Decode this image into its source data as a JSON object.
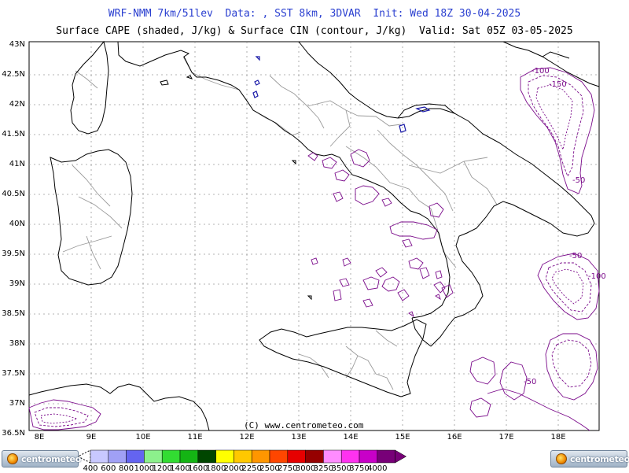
{
  "header": {
    "title_line1": "WRF-NMM 7km/51lev  Data: , SST 8km, 3DVAR  Init: Wed 18Z 30-04-2025",
    "title_line2": "Surface CAPE (shaded, J/kg) & Surface CIN (contour, J/kg)  Valid: Sat 05Z 03-05-2025"
  },
  "map": {
    "latitude_labels": [
      "43N",
      "42.5N",
      "42N",
      "41.5N",
      "41N",
      "40.5N",
      "40N",
      "39.5N",
      "39N",
      "38.5N",
      "38N",
      "37.5N",
      "37N",
      "36.5N"
    ],
    "longitude_labels": [
      "8E",
      "9E",
      "10E",
      "11E",
      "12E",
      "13E",
      "14E",
      "15E",
      "16E",
      "17E",
      "18E"
    ],
    "cin_contour_labels": [
      "-100",
      "-150",
      "-50",
      "-100",
      "-50",
      "-50"
    ],
    "copyright": "(C) www.centrometeo.com",
    "colors": {
      "coastline": "#000000",
      "borders": "#9a9a9a",
      "grid": "#9a9a9a",
      "cin_contour": "#7a0a8a",
      "cape_small": "#1a1aa8"
    }
  },
  "colorbar": {
    "ticks": [
      "400",
      "600",
      "800",
      "1000",
      "1200",
      "1400",
      "1600",
      "1800",
      "2000",
      "2250",
      "2500",
      "2750",
      "3000",
      "3250",
      "3500",
      "3750",
      "4000"
    ],
    "colors": [
      "#c8c8ff",
      "#a0a0f5",
      "#6464f0",
      "#8cf08c",
      "#32dc32",
      "#14b414",
      "#004600",
      "#ffff00",
      "#ffc800",
      "#ff9600",
      "#ff4600",
      "#e60000",
      "#960000",
      "#ff8cff",
      "#ff32f0",
      "#c800c8",
      "#780078"
    ],
    "logo_text": "centrometeo"
  }
}
